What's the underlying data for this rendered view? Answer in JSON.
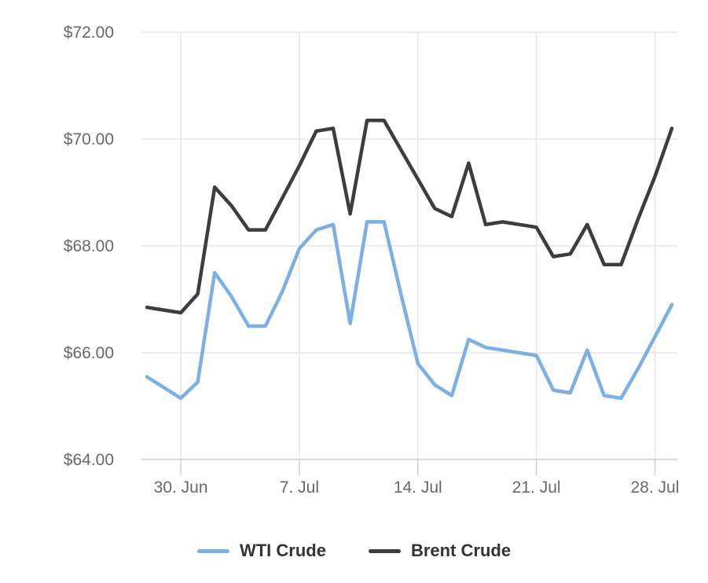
{
  "chart_data": {
    "type": "line",
    "title": "",
    "xlabel": "",
    "ylabel": "",
    "grid": true,
    "legend_position": "bottom",
    "ylim": [
      64,
      72
    ],
    "x": [
      "Jun 28",
      "Jun 29",
      "Jun 30",
      "Jul 1",
      "Jul 2",
      "Jul 3",
      "Jul 4",
      "Jul 5",
      "Jul 6",
      "Jul 7",
      "Jul 8",
      "Jul 9",
      "Jul 10",
      "Jul 11",
      "Jul 12",
      "Jul 13",
      "Jul 14",
      "Jul 15",
      "Jul 16",
      "Jul 17",
      "Jul 18",
      "Jul 19",
      "Jul 20",
      "Jul 21",
      "Jul 22",
      "Jul 23",
      "Jul 24",
      "Jul 25",
      "Jul 26",
      "Jul 27",
      "Jul 28",
      "Jul 29"
    ],
    "series": [
      {
        "name": "WTI Crude",
        "color": "#7bb0e7",
        "values": [
          65.55,
          65.35,
          65.15,
          65.45,
          67.5,
          67.05,
          66.5,
          66.5,
          67.15,
          67.95,
          68.3,
          68.4,
          66.55,
          68.45,
          68.45,
          67.1,
          65.8,
          65.4,
          65.2,
          66.25,
          66.1,
          66.05,
          66.0,
          65.95,
          65.3,
          65.25,
          66.05,
          65.2,
          65.15,
          65.7,
          66.3,
          66.9
        ]
      },
      {
        "name": "Brent Crude",
        "color": "#3d3d3d",
        "values": [
          66.85,
          66.8,
          66.75,
          67.1,
          69.1,
          68.75,
          68.3,
          68.3,
          68.9,
          69.5,
          70.15,
          70.2,
          68.6,
          70.35,
          70.35,
          69.8,
          69.25,
          68.7,
          68.55,
          69.55,
          68.4,
          68.45,
          68.4,
          68.35,
          67.8,
          67.85,
          68.4,
          67.65,
          67.65,
          68.5,
          69.3,
          70.2
        ]
      }
    ],
    "y_ticks": [
      {
        "value": 64,
        "label": "$64.00"
      },
      {
        "value": 66,
        "label": "$66.00"
      },
      {
        "value": 68,
        "label": "$68.00"
      },
      {
        "value": 70,
        "label": "$70.00"
      },
      {
        "value": 72,
        "label": "$72.00"
      }
    ],
    "x_ticks": [
      {
        "index": 2,
        "label": "30. Jun"
      },
      {
        "index": 9,
        "label": "7. Jul"
      },
      {
        "index": 16,
        "label": "14. Jul"
      },
      {
        "index": 23,
        "label": "21. Jul"
      },
      {
        "index": 30,
        "label": "28. Jul"
      }
    ]
  },
  "colors": {
    "background": "#ffffff",
    "gridline": "#e7e7e7",
    "axis_line": "#d3d6d9",
    "tick_mark": "#ccd0d4",
    "axis_text": "#65686c",
    "legend_text": "#333333",
    "wti_line": "#7bb0e7",
    "brent_line": "#3d3d3d"
  },
  "legend": {
    "items": [
      {
        "label": "WTI Crude",
        "color": "#7bb0e7"
      },
      {
        "label": "Brent Crude",
        "color": "#3d3d3d"
      }
    ]
  }
}
